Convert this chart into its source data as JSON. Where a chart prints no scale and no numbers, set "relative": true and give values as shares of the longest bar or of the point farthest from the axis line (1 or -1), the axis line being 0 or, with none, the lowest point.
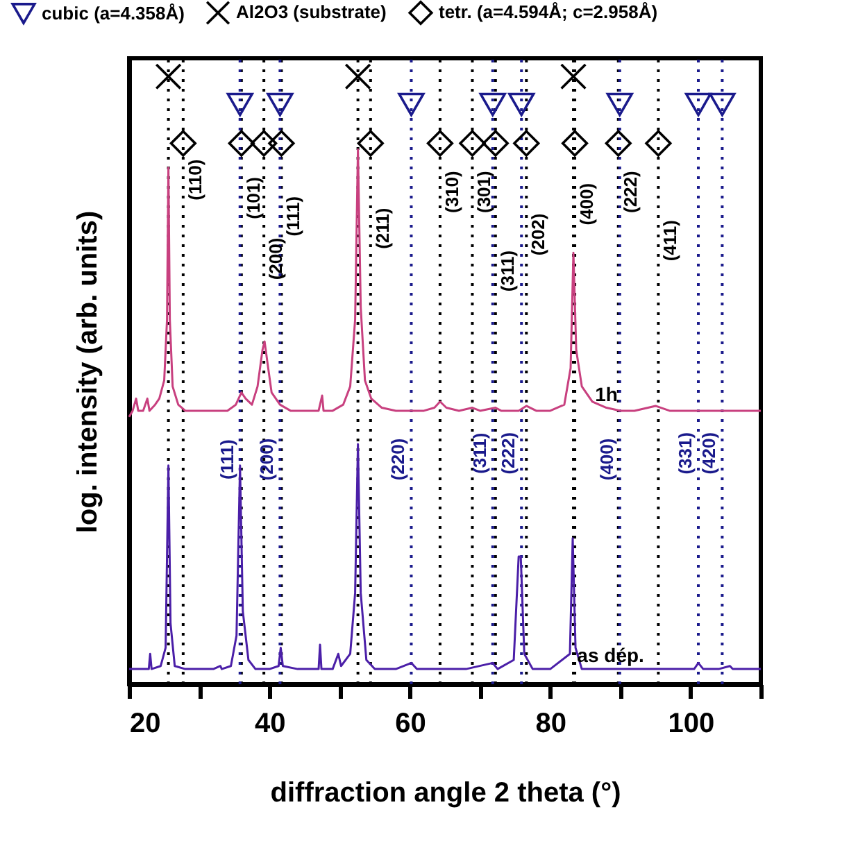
{
  "chart_data": {
    "type": "line",
    "relative": true,
    "xlabel": "diffraction angle 2 theta (°)",
    "ylabel": "log. intensity (arb. units)",
    "xlim": [
      20,
      110
    ],
    "xticks": [
      20,
      {
        "value": 30,
        "label": null
      },
      40,
      {
        "value": 50,
        "label": null
      },
      60,
      {
        "value": 70,
        "label": null
      },
      80,
      {
        "value": 90,
        "label": null
      },
      100,
      {
        "value": 110,
        "label": null
      }
    ],
    "grid": false,
    "legend": "top",
    "tick_labels": "x",
    "series": [
      {
        "color": "#c8407f",
        "x": [
          20,
          20.5,
          21,
          21.3,
          22,
          22.6,
          22.9,
          23.7,
          24.3,
          25.0,
          25.4,
          25.6,
          25.8,
          26.2,
          27,
          28,
          30,
          32,
          34,
          35.2,
          36.0,
          36.6,
          37.5,
          38.3,
          39.0,
          39.3,
          39.7,
          40.3,
          41.5,
          43,
          45,
          47,
          47.5,
          47.7,
          49,
          50.5,
          51.5,
          52.2,
          52.6,
          53.0,
          53.6,
          54.5,
          56,
          58,
          60,
          62,
          63.5,
          64.3,
          65.2,
          67,
          68.9,
          70,
          72.2,
          73,
          75.5,
          76.6,
          78,
          80,
          82,
          82.9,
          83.3,
          83.7,
          84.5,
          86,
          88,
          90,
          92,
          95,
          97,
          100,
          103,
          106,
          110
        ],
        "values": [
          0.44,
          0.45,
          0.47,
          0.45,
          0.45,
          0.47,
          0.45,
          0.46,
          0.47,
          0.5,
          0.6,
          0.85,
          0.6,
          0.49,
          0.46,
          0.45,
          0.45,
          0.45,
          0.45,
          0.46,
          0.48,
          0.47,
          0.46,
          0.49,
          0.55,
          0.564,
          0.53,
          0.48,
          0.46,
          0.45,
          0.45,
          0.45,
          0.475,
          0.45,
          0.45,
          0.46,
          0.49,
          0.6,
          0.88,
          0.62,
          0.5,
          0.47,
          0.455,
          0.45,
          0.45,
          0.45,
          0.455,
          0.465,
          0.455,
          0.45,
          0.455,
          0.45,
          0.455,
          0.45,
          0.45,
          0.458,
          0.45,
          0.45,
          0.46,
          0.52,
          0.71,
          0.55,
          0.49,
          0.465,
          0.455,
          0.45,
          0.45,
          0.458,
          0.45,
          0.45,
          0.45,
          0.45,
          0.45
        ]
      },
      {
        "color": "#4b1fa8",
        "x": [
          20,
          21,
          22.8,
          23,
          23.2,
          24.5,
          25.2,
          25.6,
          25.9,
          26.5,
          28,
          30,
          32,
          33,
          33.2,
          34.5,
          35.3,
          35.8,
          36.2,
          37,
          38,
          40,
          41.3,
          41.6,
          41.9,
          44,
          46,
          47,
          47.2,
          47.4,
          49,
          49.8,
          50.2,
          51.5,
          52.2,
          52.6,
          53.0,
          53.8,
          55,
          58,
          60.2,
          61,
          64,
          68,
          71.8,
          72.5,
          74.8,
          75.5,
          75.8,
          76.3,
          77.5,
          80,
          82.8,
          83.2,
          83.6,
          84.5,
          88,
          92,
          96,
          100.5,
          101.1,
          101.8,
          104,
          105.6,
          106,
          110
        ],
        "values": [
          0.025,
          0.025,
          0.025,
          0.05,
          0.025,
          0.03,
          0.06,
          0.36,
          0.1,
          0.03,
          0.025,
          0.025,
          0.025,
          0.03,
          0.025,
          0.03,
          0.08,
          0.36,
          0.12,
          0.04,
          0.025,
          0.025,
          0.03,
          0.06,
          0.03,
          0.025,
          0.025,
          0.025,
          0.065,
          0.025,
          0.025,
          0.05,
          0.03,
          0.05,
          0.15,
          0.395,
          0.15,
          0.04,
          0.025,
          0.025,
          0.035,
          0.025,
          0.025,
          0.025,
          0.035,
          0.025,
          0.04,
          0.21,
          0.21,
          0.05,
          0.025,
          0.025,
          0.05,
          0.24,
          0.06,
          0.025,
          0.025,
          0.025,
          0.025,
          0.025,
          0.035,
          0.025,
          0.025,
          0.03,
          0.025,
          0.025
        ]
      },
      {
        "type": "scatter",
        "name": "cubic (a=4.358Å)",
        "marker": "triangle",
        "color": "#1a1a8c",
        "x": [
          35.8,
          41.5,
          60.2,
          71.8,
          75.9,
          89.9,
          101.1,
          104.5
        ],
        "values": [
          0.954,
          0.954,
          0.954,
          0.954,
          0.954,
          0.954,
          0.954,
          0.954
        ]
      },
      {
        "type": "scatter",
        "name": "Al2O3 (substrate)",
        "marker": "cross",
        "color": "#000000",
        "x": [
          25.6,
          52.6,
          83.3
        ],
        "values": [
          1,
          1,
          1
        ]
      },
      {
        "type": "scatter",
        "name": "tetr. (a=4.594Å; c=2.958Å)",
        "marker": "diamond",
        "color": "#000000",
        "x": [
          27.7,
          36.0,
          39.2,
          41.7,
          54.4,
          64.3,
          68.9,
          72.2,
          76.6,
          83.5,
          89.7,
          95.4
        ],
        "values": [
          0.89,
          0.89,
          0.89,
          0.89,
          0.89,
          0.89,
          0.89,
          0.89,
          0.89,
          0.89,
          0.89,
          0.89
        ]
      }
    ],
    "ref_lines": [
      {
        "axis": "x",
        "value": 25.6,
        "color": "#000000",
        "line_style": "dotted"
      },
      {
        "axis": "x",
        "value": 52.6,
        "color": "#000000",
        "line_style": "dotted"
      },
      {
        "axis": "x",
        "value": 83.3,
        "color": "#000000",
        "line_style": "dotted"
      },
      {
        "axis": "x",
        "value": 27.7,
        "color": "#000000",
        "line_style": "dotted"
      },
      {
        "axis": "x",
        "value": 36.0,
        "color": "#000000",
        "line_style": "dotted"
      },
      {
        "axis": "x",
        "value": 39.2,
        "color": "#000000",
        "line_style": "dotted"
      },
      {
        "axis": "x",
        "value": 41.7,
        "color": "#000000",
        "line_style": "dotted"
      },
      {
        "axis": "x",
        "value": 54.4,
        "color": "#000000",
        "line_style": "dotted"
      },
      {
        "axis": "x",
        "value": 64.3,
        "color": "#000000",
        "line_style": "dotted"
      },
      {
        "axis": "x",
        "value": 68.9,
        "color": "#000000",
        "line_style": "dotted"
      },
      {
        "axis": "x",
        "value": 72.2,
        "color": "#000000",
        "line_style": "dotted"
      },
      {
        "axis": "x",
        "value": 76.6,
        "color": "#000000",
        "line_style": "dotted"
      },
      {
        "axis": "x",
        "value": 83.5,
        "color": "#000000",
        "line_style": "dotted"
      },
      {
        "axis": "x",
        "value": 89.7,
        "color": "#000000",
        "line_style": "dotted"
      },
      {
        "axis": "x",
        "value": 95.4,
        "color": "#000000",
        "line_style": "dotted"
      },
      {
        "axis": "x",
        "value": 35.8,
        "color": "#1a1a8c",
        "line_style": "dotted"
      },
      {
        "axis": "x",
        "value": 41.5,
        "color": "#1a1a8c",
        "line_style": "dotted"
      },
      {
        "axis": "x",
        "value": 60.2,
        "color": "#1a1a8c",
        "line_style": "dotted"
      },
      {
        "axis": "x",
        "value": 71.8,
        "color": "#1a1a8c",
        "line_style": "dotted"
      },
      {
        "axis": "x",
        "value": 75.9,
        "color": "#1a1a8c",
        "line_style": "dotted"
      },
      {
        "axis": "x",
        "value": 89.9,
        "color": "#1a1a8c",
        "line_style": "dotted"
      },
      {
        "axis": "x",
        "value": 101.1,
        "color": "#1a1a8c",
        "line_style": "dotted"
      },
      {
        "axis": "x",
        "value": 104.5,
        "color": "#1a1a8c",
        "line_style": "dotted"
      }
    ],
    "annotations": [
      {
        "text": "(110)",
        "x": 27.7,
        "y": 0.83
      },
      {
        "text": "(101)",
        "x": 36.0,
        "y": 0.8
      },
      {
        "text": "(200)",
        "x": 39.2,
        "y": 0.7
      },
      {
        "text": "(111)",
        "x": 41.7,
        "y": 0.77
      },
      {
        "text": "(211)",
        "x": 54.4,
        "y": 0.75
      },
      {
        "text": "(310)",
        "x": 64.3,
        "y": 0.81
      },
      {
        "text": "(301)",
        "x": 68.9,
        "y": 0.81
      },
      {
        "text": "(311)",
        "x": 72.2,
        "y": 0.68
      },
      {
        "text": "(202)",
        "x": 76.6,
        "y": 0.74
      },
      {
        "text": "(400)",
        "x": 83.5,
        "y": 0.79
      },
      {
        "text": "(222)",
        "x": 89.7,
        "y": 0.81
      },
      {
        "text": "(411)",
        "x": 95.4,
        "y": 0.73
      },
      {
        "text": "(111)",
        "x": 35.8,
        "y": 0.37
      },
      {
        "text": "(200)",
        "x": 41.5,
        "y": 0.37
      },
      {
        "text": "(220)",
        "x": 60.2,
        "y": 0.37
      },
      {
        "text": "(311)",
        "x": 71.8,
        "y": 0.38
      },
      {
        "text": "(222)",
        "x": 75.9,
        "y": 0.38
      },
      {
        "text": "(400)",
        "x": 89.9,
        "y": 0.37
      },
      {
        "text": "(331)",
        "x": 101.1,
        "y": 0.38
      },
      {
        "text": "(420)",
        "x": 104.5,
        "y": 0.38
      },
      {
        "text": "1h",
        "x": 88,
        "y": 0.455
      },
      {
        "text": "as dép.",
        "x": 88.6,
        "y": 0.025
      }
    ]
  }
}
